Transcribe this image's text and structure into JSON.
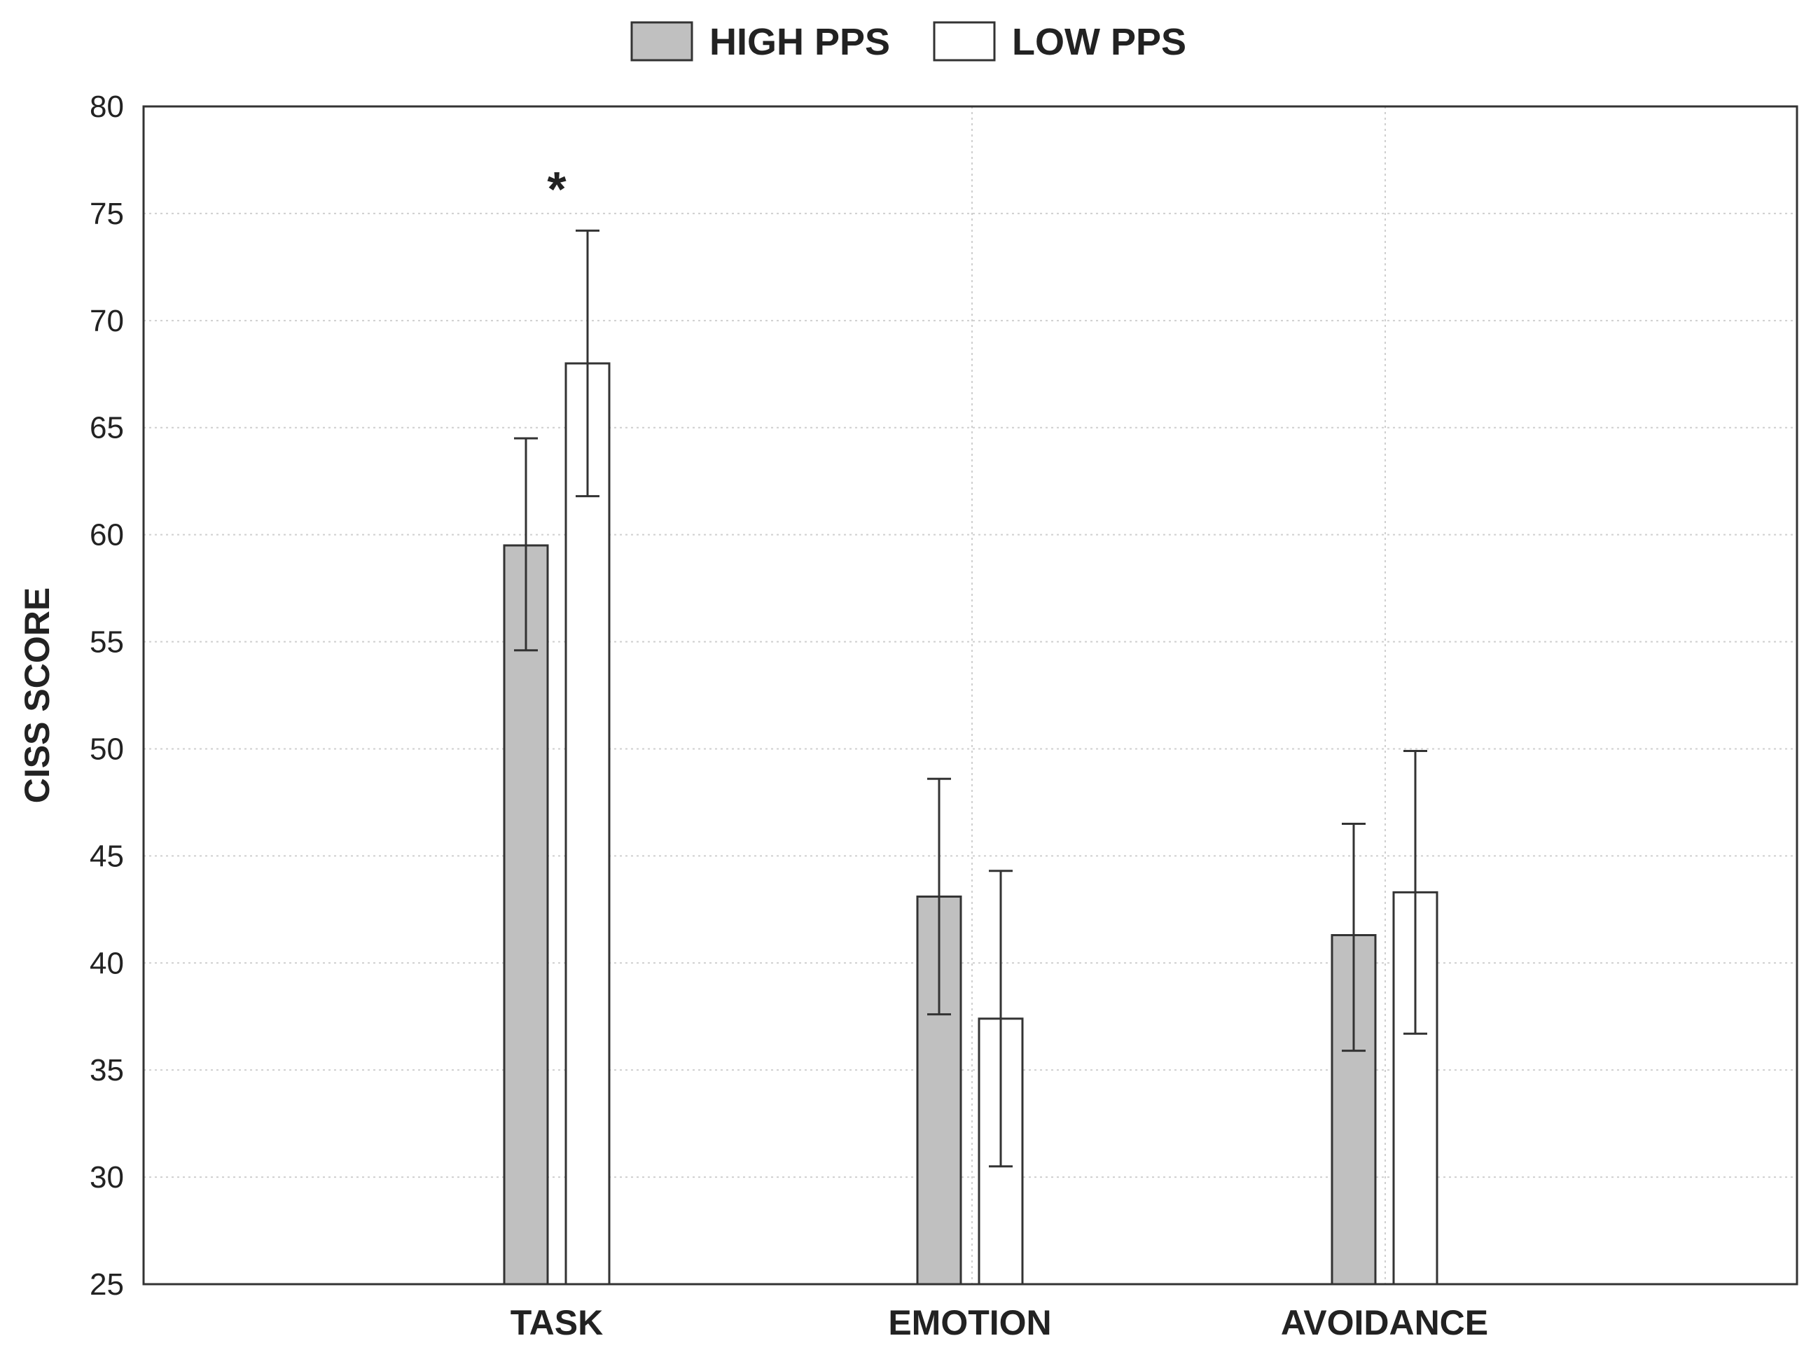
{
  "chart_data": {
    "type": "bar",
    "title": "",
    "xlabel": "",
    "ylabel": "CISS SCORE",
    "ylim": [
      25,
      80
    ],
    "yticks": [
      25,
      30,
      35,
      40,
      45,
      50,
      55,
      60,
      65,
      70,
      75,
      80
    ],
    "grid": true,
    "legend_position": "top-center",
    "categories": [
      "TASK",
      "EMOTION",
      "AVOIDANCE"
    ],
    "series": [
      {
        "name": "HIGH PPS",
        "color": "#c0c0c0",
        "values": [
          59.5,
          43.1,
          41.3
        ],
        "error_low": [
          54.6,
          37.6,
          35.9
        ],
        "error_high": [
          64.5,
          48.6,
          46.5
        ]
      },
      {
        "name": "LOW PPS",
        "color": "#ffffff",
        "values": [
          68.0,
          37.4,
          43.3
        ],
        "error_low": [
          61.8,
          30.5,
          36.7
        ],
        "error_high": [
          74.2,
          44.3,
          49.9
        ]
      }
    ],
    "annotations": [
      {
        "text": "*",
        "category": "TASK",
        "y": 76.5
      }
    ]
  }
}
